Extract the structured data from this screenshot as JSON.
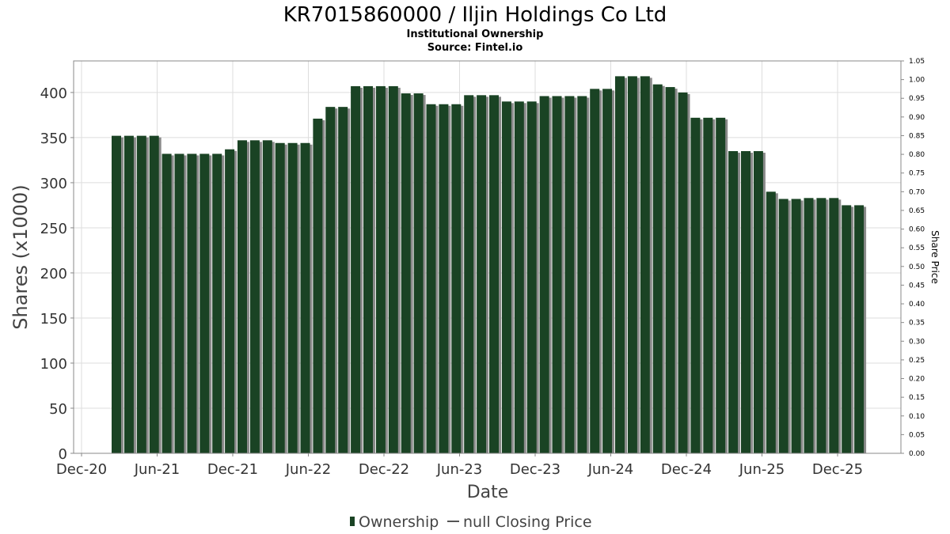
{
  "chart_data": {
    "type": "bar",
    "title": "KR7015860000 / Iljin Holdings Co Ltd",
    "subtitle": "Institutional Ownership",
    "source": "Source: Fintel.io",
    "xlabel": "Date",
    "ylabel": "Shares (x1000)",
    "y2label": "Share Price",
    "ylim": [
      0,
      435
    ],
    "y2lim": [
      0,
      1.05
    ],
    "yticks": [
      "0",
      "50",
      "100",
      "150",
      "200",
      "250",
      "300",
      "350",
      "400"
    ],
    "y2ticks": [
      "0.00",
      "0.05",
      "0.10",
      "0.15",
      "0.20",
      "0.25",
      "0.30",
      "0.35",
      "0.40",
      "0.45",
      "0.50",
      "0.55",
      "0.60",
      "0.65",
      "0.70",
      "0.75",
      "0.80",
      "0.85",
      "0.90",
      "0.95",
      "1.00",
      "1.05"
    ],
    "xticks": [
      "Dec-20",
      "Jun-21",
      "Dec-21",
      "Jun-22",
      "Dec-22",
      "Jun-23",
      "Dec-23",
      "Jun-24",
      "Dec-24",
      "Jun-25",
      "Dec-25"
    ],
    "grid": true,
    "legend_position": "bottom",
    "colors": {
      "bar": "#1a4324",
      "bar_shadow": "#8a8a8a"
    },
    "series": [
      {
        "name": "Ownership",
        "values": [
          352,
          352,
          352,
          352,
          332,
          332,
          332,
          332,
          332,
          337,
          347,
          347,
          347,
          344,
          344,
          344,
          371,
          384,
          384,
          407,
          407,
          407,
          407,
          399,
          399,
          387,
          387,
          387,
          397,
          397,
          397,
          390,
          390,
          390,
          396,
          396,
          396,
          396,
          404,
          404,
          418,
          418,
          418,
          409,
          406,
          400,
          372,
          372,
          372,
          335,
          335,
          335,
          290,
          282,
          282,
          283,
          283,
          283,
          275,
          275
        ]
      }
    ],
    "legend": [
      {
        "name": "Ownership",
        "marker": "bar"
      },
      {
        "name": "null Closing Price",
        "marker": "line"
      }
    ]
  }
}
